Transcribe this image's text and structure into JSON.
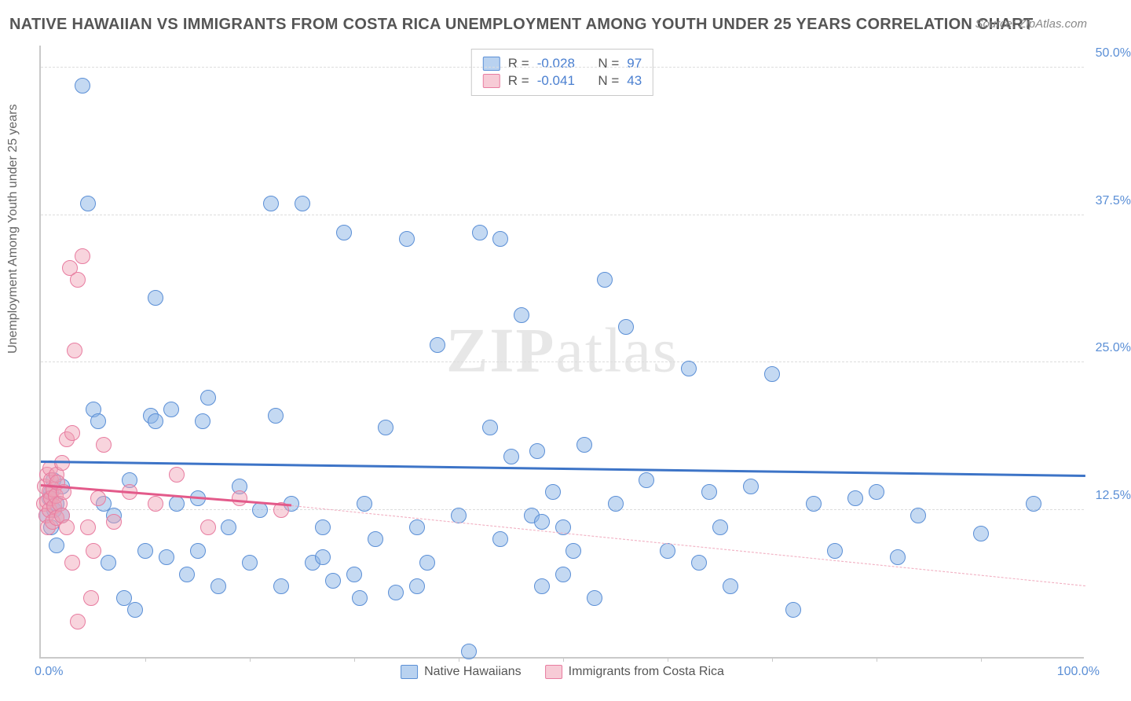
{
  "title": "NATIVE HAWAIIAN VS IMMIGRANTS FROM COSTA RICA UNEMPLOYMENT AMONG YOUTH UNDER 25 YEARS CORRELATION CHART",
  "source": "Source: ZipAtlas.com",
  "y_axis_label": "Unemployment Among Youth under 25 years",
  "watermark": {
    "bold": "ZIP",
    "rest": "atlas"
  },
  "chart": {
    "type": "scatter",
    "xlim": [
      0,
      100
    ],
    "ylim": [
      0,
      52
    ],
    "x_ticks": [
      0,
      100
    ],
    "x_tick_labels": [
      "0.0%",
      "100.0%"
    ],
    "x_minor_ticks": [
      10,
      20,
      30,
      40,
      50,
      60,
      70,
      80,
      90
    ],
    "y_ticks": [
      12.5,
      25.0,
      37.5,
      50.0
    ],
    "y_tick_labels": [
      "12.5%",
      "25.0%",
      "37.5%",
      "50.0%"
    ],
    "background_color": "#ffffff",
    "grid_color": "#dddddd",
    "axis_color": "#c9c9c9",
    "marker_radius": 10,
    "series": [
      {
        "name": "Native Hawaiians",
        "color_fill": "rgba(138,180,230,0.5)",
        "color_stroke": "#5b8fd6",
        "r": "-0.028",
        "n": "97",
        "trend": {
          "x1": 0,
          "y1": 16.5,
          "x2": 100,
          "y2": 15.3,
          "stroke": "#3d74c7",
          "width": 3,
          "dash": false
        },
        "points": [
          [
            0.5,
            12
          ],
          [
            0.8,
            13.5
          ],
          [
            1,
            14
          ],
          [
            1,
            11
          ],
          [
            1.2,
            15
          ],
          [
            1.3,
            12.5
          ],
          [
            1.5,
            13
          ],
          [
            1.5,
            9.5
          ],
          [
            2,
            14.5
          ],
          [
            2,
            12
          ],
          [
            4,
            48.5
          ],
          [
            4.5,
            38.5
          ],
          [
            5,
            21
          ],
          [
            5.5,
            20
          ],
          [
            6,
            13
          ],
          [
            6.5,
            8
          ],
          [
            7,
            12
          ],
          [
            8,
            5
          ],
          [
            8.5,
            15
          ],
          [
            9,
            4
          ],
          [
            10,
            9
          ],
          [
            10.5,
            20.5
          ],
          [
            11,
            30.5
          ],
          [
            12,
            8.5
          ],
          [
            12.5,
            21
          ],
          [
            13,
            13
          ],
          [
            14,
            7
          ],
          [
            15,
            9
          ],
          [
            15.5,
            20
          ],
          [
            16,
            22
          ],
          [
            17,
            6
          ],
          [
            18,
            11
          ],
          [
            19,
            14.5
          ],
          [
            20,
            8
          ],
          [
            21,
            12.5
          ],
          [
            22,
            38.5
          ],
          [
            22.5,
            20.5
          ],
          [
            23,
            6
          ],
          [
            24,
            13
          ],
          [
            25,
            38.5
          ],
          [
            26,
            8
          ],
          [
            27,
            11
          ],
          [
            28,
            6.5
          ],
          [
            29,
            36
          ],
          [
            30,
            7
          ],
          [
            31,
            13
          ],
          [
            32,
            10
          ],
          [
            33,
            19.5
          ],
          [
            34,
            5.5
          ],
          [
            35,
            35.5
          ],
          [
            36,
            11
          ],
          [
            37,
            8
          ],
          [
            38,
            26.5
          ],
          [
            40,
            12
          ],
          [
            41,
            0.5
          ],
          [
            42,
            36
          ],
          [
            43,
            19.5
          ],
          [
            44,
            10
          ],
          [
            45,
            17
          ],
          [
            46,
            29
          ],
          [
            47,
            12
          ],
          [
            47.5,
            17.5
          ],
          [
            48,
            6
          ],
          [
            49,
            14
          ],
          [
            50,
            11
          ],
          [
            51,
            9
          ],
          [
            52,
            18
          ],
          [
            53,
            5
          ],
          [
            54,
            32
          ],
          [
            55,
            13
          ],
          [
            56,
            28
          ],
          [
            58,
            15
          ],
          [
            60,
            9
          ],
          [
            62,
            24.5
          ],
          [
            63,
            8
          ],
          [
            64,
            14
          ],
          [
            65,
            11
          ],
          [
            66,
            6
          ],
          [
            68,
            14.5
          ],
          [
            70,
            24
          ],
          [
            72,
            4
          ],
          [
            74,
            13
          ],
          [
            76,
            9
          ],
          [
            78,
            13.5
          ],
          [
            80,
            14
          ],
          [
            82,
            8.5
          ],
          [
            84,
            12
          ],
          [
            90,
            10.5
          ],
          [
            95,
            13
          ],
          [
            44,
            35.5
          ],
          [
            48,
            11.5
          ],
          [
            36,
            6
          ],
          [
            30.5,
            5
          ],
          [
            27,
            8.5
          ],
          [
            50,
            7
          ],
          [
            15,
            13.5
          ],
          [
            11,
            20
          ]
        ]
      },
      {
        "name": "Immigrants from Costa Rica",
        "color_fill": "rgba(240,160,180,0.45)",
        "color_stroke": "#e87ca0",
        "r": "-0.041",
        "n": "43",
        "trend_solid": {
          "x1": 0,
          "y1": 14.5,
          "x2": 24,
          "y2": 12.8,
          "stroke": "#e35a8a",
          "width": 3,
          "dash": false
        },
        "trend_dash": {
          "x1": 24,
          "y1": 12.8,
          "x2": 100,
          "y2": 6.0,
          "stroke": "#f0a8bc",
          "width": 1.5,
          "dash": true
        },
        "points": [
          [
            0.3,
            13
          ],
          [
            0.4,
            14.5
          ],
          [
            0.5,
            12
          ],
          [
            0.6,
            15.5
          ],
          [
            0.6,
            13.2
          ],
          [
            0.7,
            11
          ],
          [
            0.8,
            14
          ],
          [
            0.8,
            12.5
          ],
          [
            0.9,
            16
          ],
          [
            1,
            13.5
          ],
          [
            1,
            15
          ],
          [
            1.1,
            11.5
          ],
          [
            1.2,
            14.2
          ],
          [
            1.3,
            12.8
          ],
          [
            1.4,
            13.7
          ],
          [
            1.5,
            15.5
          ],
          [
            1.5,
            11.8
          ],
          [
            1.6,
            14.8
          ],
          [
            1.8,
            13
          ],
          [
            2,
            12
          ],
          [
            2,
            16.5
          ],
          [
            2.2,
            14
          ],
          [
            2.5,
            11
          ],
          [
            2.5,
            18.5
          ],
          [
            2.8,
            33
          ],
          [
            3,
            19
          ],
          [
            3,
            8
          ],
          [
            3.2,
            26
          ],
          [
            3.5,
            32
          ],
          [
            3.5,
            3
          ],
          [
            4,
            34
          ],
          [
            4.5,
            11
          ],
          [
            4.8,
            5
          ],
          [
            5,
            9
          ],
          [
            5.5,
            13.5
          ],
          [
            6,
            18
          ],
          [
            7,
            11.5
          ],
          [
            8.5,
            14
          ],
          [
            11,
            13
          ],
          [
            13,
            15.5
          ],
          [
            16,
            11
          ],
          [
            19,
            13.5
          ],
          [
            23,
            12.5
          ]
        ]
      }
    ],
    "legend_bottom": [
      {
        "swatch": "blue",
        "label": "Native Hawaiians"
      },
      {
        "swatch": "pink",
        "label": "Immigrants from Costa Rica"
      }
    ]
  },
  "stats_box": {
    "rows": [
      {
        "swatch": "blue",
        "r_label": "R =",
        "r_val": "-0.028",
        "n_label": "N =",
        "n_val": "97"
      },
      {
        "swatch": "pink",
        "r_label": "R =",
        "r_val": "-0.041",
        "n_label": "N =",
        "n_val": "43"
      }
    ]
  }
}
